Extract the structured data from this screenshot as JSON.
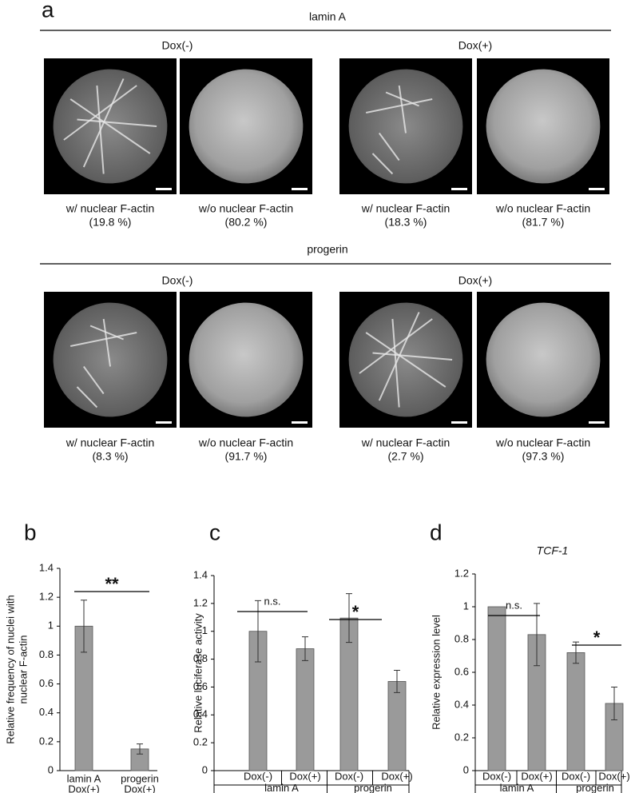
{
  "panel_a": {
    "label": "a",
    "sections": [
      {
        "title": "lamin A",
        "groups": [
          {
            "title": "Dox(-)",
            "images": [
              {
                "caption": "w/ nuclear F-actin",
                "percent": "(19.8 %)"
              },
              {
                "caption": "w/o nuclear F-actin",
                "percent": "(80.2 %)"
              }
            ]
          },
          {
            "title": "Dox(+)",
            "images": [
              {
                "caption": "w/ nuclear F-actin",
                "percent": "(18.3 %)"
              },
              {
                "caption": "w/o nuclear F-actin",
                "percent": "(81.7 %)"
              }
            ]
          }
        ]
      },
      {
        "title": "progerin",
        "groups": [
          {
            "title": "Dox(-)",
            "images": [
              {
                "caption": "w/ nuclear F-actin",
                "percent": "(8.3 %)"
              },
              {
                "caption": "w/o nuclear F-actin",
                "percent": "(91.7 %)"
              }
            ]
          },
          {
            "title": "Dox(+)",
            "images": [
              {
                "caption": "w/ nuclear F-actin",
                "percent": "(2.7 %)"
              },
              {
                "caption": "w/o nuclear F-actin",
                "percent": "(97.3 %)"
              }
            ]
          }
        ]
      }
    ]
  },
  "chart_data": [
    {
      "type": "bar",
      "panel": "b",
      "ylabel": [
        "Relative frequency of nuclei with",
        "nuclear F-actin"
      ],
      "categories": [
        [
          "lamin A",
          "Dox(+)"
        ],
        [
          "progerin",
          "Dox(+)"
        ]
      ],
      "values": [
        1.0,
        0.15
      ],
      "errors": [
        0.18,
        0.035
      ],
      "color": "#9a9a9a",
      "ylim": [
        0,
        1.4
      ],
      "yticks": [
        0,
        0.2,
        0.4,
        0.6,
        0.8,
        1,
        1.2,
        1.4
      ],
      "annotations": [
        "**"
      ]
    },
    {
      "type": "bar",
      "panel": "c",
      "ylabel": [
        "Relative luciferase activity"
      ],
      "categories": [
        "Dox(-)",
        "Dox(+)",
        "Dox(-)",
        "Dox(+)"
      ],
      "groups": [
        "lamin A",
        "progerin"
      ],
      "values": [
        1.0,
        0.875,
        1.095,
        0.64
      ],
      "errors": [
        0.22,
        0.085,
        0.175,
        0.08
      ],
      "color": "#9a9a9a",
      "ylim": [
        0,
        1.4
      ],
      "yticks": [
        0,
        0.2,
        0.4,
        0.6,
        0.8,
        1,
        1.2,
        1.4
      ],
      "annotations": [
        "n.s.",
        "*"
      ]
    },
    {
      "type": "bar",
      "panel": "d",
      "title": "TCF-1",
      "ylabel": [
        "Relative expression level"
      ],
      "categories": [
        "Dox(-)",
        "Dox(+)",
        "Dox(-)",
        "Dox(+)"
      ],
      "groups": [
        "lamin A",
        "progerin"
      ],
      "values": [
        1.0,
        0.83,
        0.72,
        0.41
      ],
      "errors": [
        null,
        0.19,
        0.065,
        0.1
      ],
      "color": "#9a9a9a",
      "ylim": [
        0,
        1.2
      ],
      "yticks": [
        0,
        0.2,
        0.4,
        0.6,
        0.8,
        1,
        1.2
      ],
      "annotations": [
        "n.s.",
        "*"
      ]
    }
  ]
}
